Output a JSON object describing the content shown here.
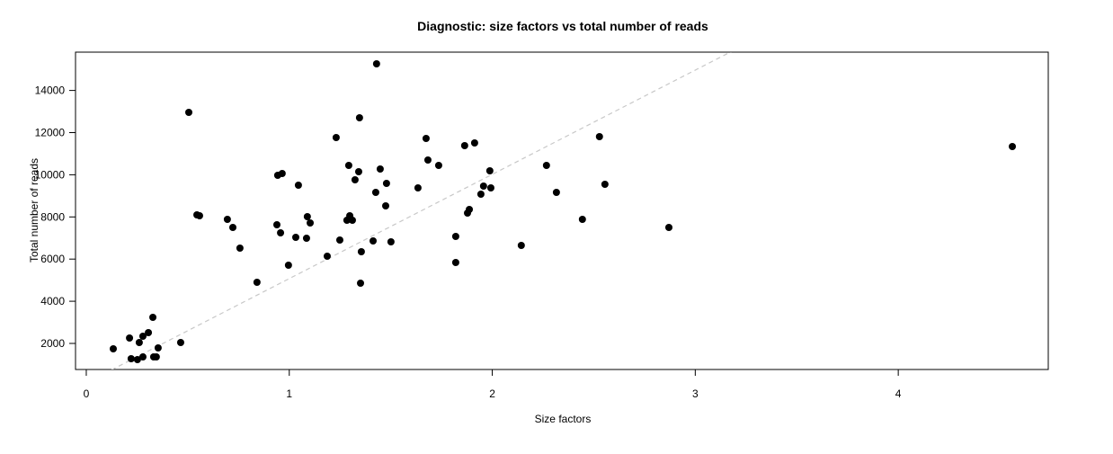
{
  "chart_data": {
    "type": "scatter",
    "title": "Diagnostic: size factors vs total number of reads",
    "xlabel": "Size factors",
    "ylabel": "Total number of reads",
    "xlim": [
      -0.053,
      4.739
    ],
    "ylim": [
      763,
      15817
    ],
    "xticks": [
      0,
      1,
      2,
      3,
      4
    ],
    "yticks": [
      2000,
      4000,
      6000,
      8000,
      10000,
      12000,
      14000
    ],
    "grid": false,
    "point_color": "#000000",
    "reference_line": {
      "slope": 4945,
      "intercept": 130,
      "color": "#c8c8c8",
      "style": "dashed"
    },
    "points": [
      [
        0.133,
        1744
      ],
      [
        0.213,
        2256
      ],
      [
        0.261,
        2043
      ],
      [
        0.279,
        2341
      ],
      [
        0.306,
        2512
      ],
      [
        0.328,
        3237
      ],
      [
        0.221,
        1275
      ],
      [
        0.252,
        1232
      ],
      [
        0.279,
        1360
      ],
      [
        0.332,
        1360
      ],
      [
        0.345,
        1360
      ],
      [
        0.354,
        1787
      ],
      [
        0.465,
        2043
      ],
      [
        0.505,
        12960
      ],
      [
        0.545,
        8098
      ],
      [
        0.558,
        8055
      ],
      [
        0.695,
        7885
      ],
      [
        0.722,
        7501
      ],
      [
        0.757,
        6520
      ],
      [
        0.841,
        4900
      ],
      [
        0.939,
        7629
      ],
      [
        0.943,
        9974
      ],
      [
        0.965,
        10060
      ],
      [
        0.957,
        7245
      ],
      [
        0.996,
        5710
      ],
      [
        1.032,
        7032
      ],
      [
        1.045,
        9505
      ],
      [
        1.089,
        8013
      ],
      [
        1.085,
        6989
      ],
      [
        1.103,
        7714
      ],
      [
        1.187,
        6136
      ],
      [
        1.231,
        11765
      ],
      [
        1.249,
        6904
      ],
      [
        1.284,
        7842
      ],
      [
        1.311,
        7842
      ],
      [
        1.298,
        8055
      ],
      [
        1.293,
        10443
      ],
      [
        1.324,
        9761
      ],
      [
        1.342,
        10145
      ],
      [
        1.346,
        12704
      ],
      [
        1.351,
        4857
      ],
      [
        1.355,
        6350
      ],
      [
        1.413,
        6861
      ],
      [
        1.426,
        9164
      ],
      [
        1.43,
        15262
      ],
      [
        1.448,
        10273
      ],
      [
        1.475,
        8525
      ],
      [
        1.479,
        9591
      ],
      [
        1.501,
        6819
      ],
      [
        1.634,
        9377
      ],
      [
        1.674,
        11723
      ],
      [
        1.683,
        10700
      ],
      [
        1.736,
        10443
      ],
      [
        1.82,
        7075
      ],
      [
        1.82,
        5838
      ],
      [
        1.864,
        11382
      ],
      [
        1.878,
        8183
      ],
      [
        1.887,
        8354
      ],
      [
        1.913,
        11510
      ],
      [
        1.944,
        9079
      ],
      [
        1.957,
        9463
      ],
      [
        1.988,
        10188
      ],
      [
        1.993,
        9377
      ],
      [
        2.143,
        6648
      ],
      [
        2.267,
        10443
      ],
      [
        2.316,
        9164
      ],
      [
        2.444,
        7885
      ],
      [
        2.528,
        11808
      ],
      [
        2.555,
        9548
      ],
      [
        2.87,
        7501
      ],
      [
        4.562,
        11339
      ]
    ]
  }
}
